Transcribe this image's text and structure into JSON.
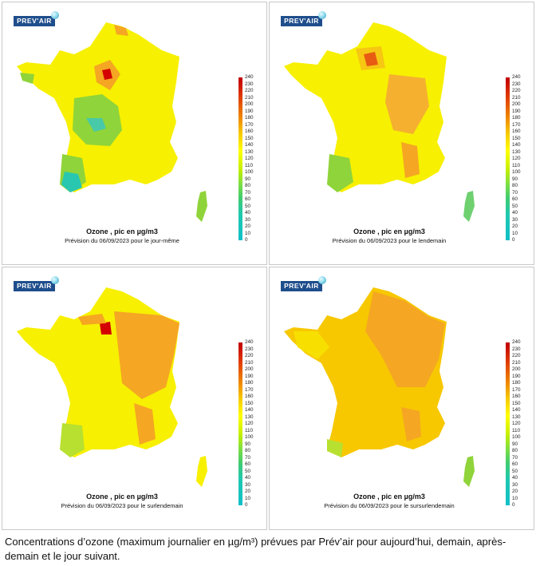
{
  "logo_text": "PREV'AIR",
  "scale_ticks": [
    "240",
    "230",
    "220",
    "210",
    "200",
    "190",
    "180",
    "170",
    "160",
    "150",
    "140",
    "130",
    "120",
    "110",
    "100",
    "90",
    "80",
    "70",
    "60",
    "50",
    "40",
    "30",
    "20",
    "10",
    "0"
  ],
  "panels": [
    {
      "title": "Ozone , pic en µg/m3",
      "subtitle": "Prévision du 06/09/2023 pour le jour-même"
    },
    {
      "title": "Ozone , pic en µg/m3",
      "subtitle": "Prévision du 06/09/2023 pour le lendemain"
    },
    {
      "title": "Ozone , pic en µg/m3",
      "subtitle": "Prévision du 06/09/2023 pour le surlendemain"
    },
    {
      "title": "Ozone , pic en µg/m3",
      "subtitle": "Prévision du 06/09/2023 pour le sursurlendemain"
    }
  ],
  "caption": "Concentrations d’ozone (maximum journalier en µg/m³) prévues par Prév’air pour aujourd’hui, demain, après-demain et le jour suivant.",
  "colors": {
    "yellow": "#f7f000",
    "orange": "#f5a623",
    "red": "#d40000",
    "green": "#8fd43a",
    "teal": "#29c7b0"
  }
}
